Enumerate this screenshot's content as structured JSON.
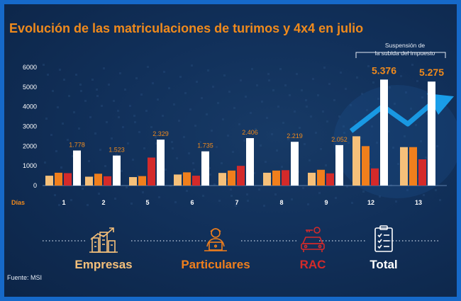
{
  "title": "Evolución de las matriculaciones de turimos y 4x4 en julio",
  "annotation": {
    "line1": "Suspensión de",
    "line2": "la subida del impuesto"
  },
  "source": "Fuente: MSI",
  "colors": {
    "empresas": "#f5c07a",
    "particulares": "#f07f1c",
    "rac": "#d42a2a",
    "total": "#ffffff",
    "accent_text": "#f08a1c",
    "axis_text": "#ffffff",
    "trend_arrow": "#1aa3f0"
  },
  "chart_data": {
    "type": "bar",
    "title": "Evolución de las matriculaciones de turimos y 4x4 en julio",
    "xlabel": "Días",
    "ylabel": "",
    "ylim": [
      0,
      6000
    ],
    "yticks": [
      0,
      1000,
      2000,
      3000,
      4000,
      5000,
      6000
    ],
    "grid": false,
    "legend_position": "bottom",
    "categories": [
      "1",
      "2",
      "5",
      "6",
      "7",
      "8",
      "9",
      "12",
      "13"
    ],
    "series": [
      {
        "name": "Empresas",
        "values": [
          500,
          450,
          430,
          560,
          640,
          650,
          650,
          2500,
          1950
        ]
      },
      {
        "name": "Particulares",
        "values": [
          650,
          600,
          480,
          670,
          760,
          760,
          800,
          2000,
          1950
        ]
      },
      {
        "name": "RAC",
        "values": [
          630,
          470,
          1420,
          500,
          1000,
          780,
          620,
          870,
          1330
        ]
      },
      {
        "name": "Total",
        "values": [
          1778,
          1523,
          2329,
          1735,
          2406,
          2219,
          2052,
          5376,
          5275
        ]
      }
    ],
    "data_labels": [
      "1.778",
      "1.523",
      "2.329",
      "1.735",
      "2.406",
      "2.219",
      "2.052",
      "5.376",
      "5.275"
    ]
  },
  "legend": [
    {
      "label": "Empresas",
      "icon": "buildings-growth-icon",
      "color": "#f5c07a"
    },
    {
      "label": "Particulares",
      "icon": "person-laptop-icon",
      "color": "#f07f1c"
    },
    {
      "label": "RAC",
      "icon": "car-key-icon",
      "color": "#d42a2a"
    },
    {
      "label": "Total",
      "icon": "checklist-icon",
      "color": "#ffffff"
    }
  ]
}
